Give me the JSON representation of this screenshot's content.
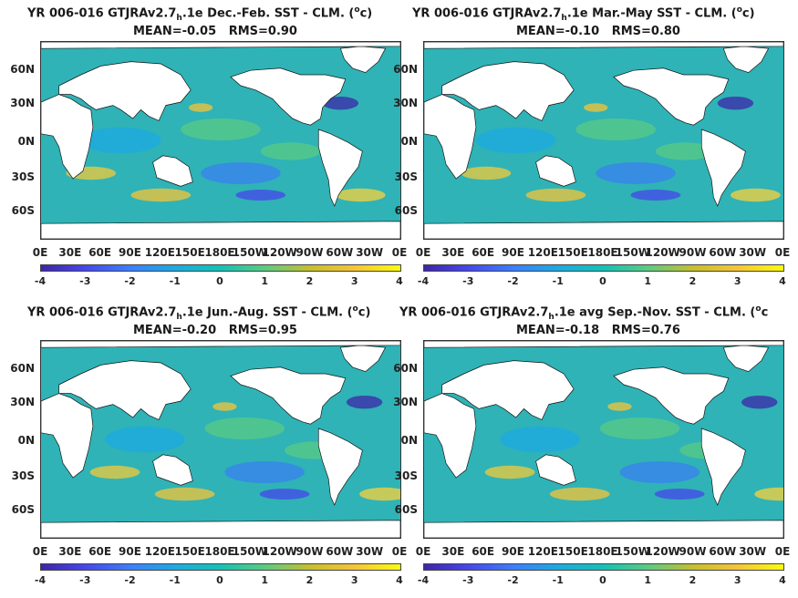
{
  "panels": [
    {
      "title_main": "YR 006-016 GTJRAv2.7",
      "title_sub": "h",
      "title_rest": ".1e  Dec.-Feb. SST - CLM. (",
      "title_unit_sup": "o",
      "title_unit_end": "c)",
      "mean": "MEAN=-0.05",
      "rms": "RMS=0.90"
    },
    {
      "title_main": "YR 006-016 GTJRAv2.7",
      "title_sub": "h",
      "title_rest": ".1e Mar.-May SST - CLM. (",
      "title_unit_sup": "o",
      "title_unit_end": "c)",
      "mean": "MEAN=-0.10",
      "rms": "RMS=0.80"
    },
    {
      "title_main": "YR 006-016 GTJRAv2.7",
      "title_sub": "h",
      "title_rest": ".1e Jun.-Aug. SST - CLM. (",
      "title_unit_sup": "o",
      "title_unit_end": "c)",
      "mean": "MEAN=-0.20",
      "rms": "RMS=0.95"
    },
    {
      "title_main": "YR 006-016 GTJRAv2.7",
      "title_sub": "h",
      "title_rest": ".1e avg Sep.-Nov. SST - CLM. (",
      "title_unit_sup": "o",
      "title_unit_end": "c",
      "mean": "MEAN=-0.18",
      "rms": "RMS=0.76"
    }
  ],
  "chart_data": {
    "type": "heatmap",
    "lat_ticks": [
      "60N",
      "30N",
      "0N",
      "30S",
      "60S"
    ],
    "lon_ticks": [
      "0E",
      "30E",
      "60E",
      "90E",
      "120E",
      "150E",
      "180E",
      "150W",
      "120W",
      "90W",
      "60W",
      "30W",
      "0E"
    ],
    "colorbar_ticks": [
      "-4",
      "-3",
      "-2",
      "-1",
      "0",
      "1",
      "2",
      "3",
      "4"
    ],
    "colorbar_range": [
      -4,
      4
    ],
    "colormap": [
      "#3e26a8",
      "#4746eb",
      "#3c7ffc",
      "#1ea9e1",
      "#14c2b5",
      "#59cb84",
      "#c6bf2e",
      "#f6c437",
      "#f9fb0e"
    ],
    "land_color": "#ffffff",
    "ocean_base_color": "#2fb3b6"
  }
}
